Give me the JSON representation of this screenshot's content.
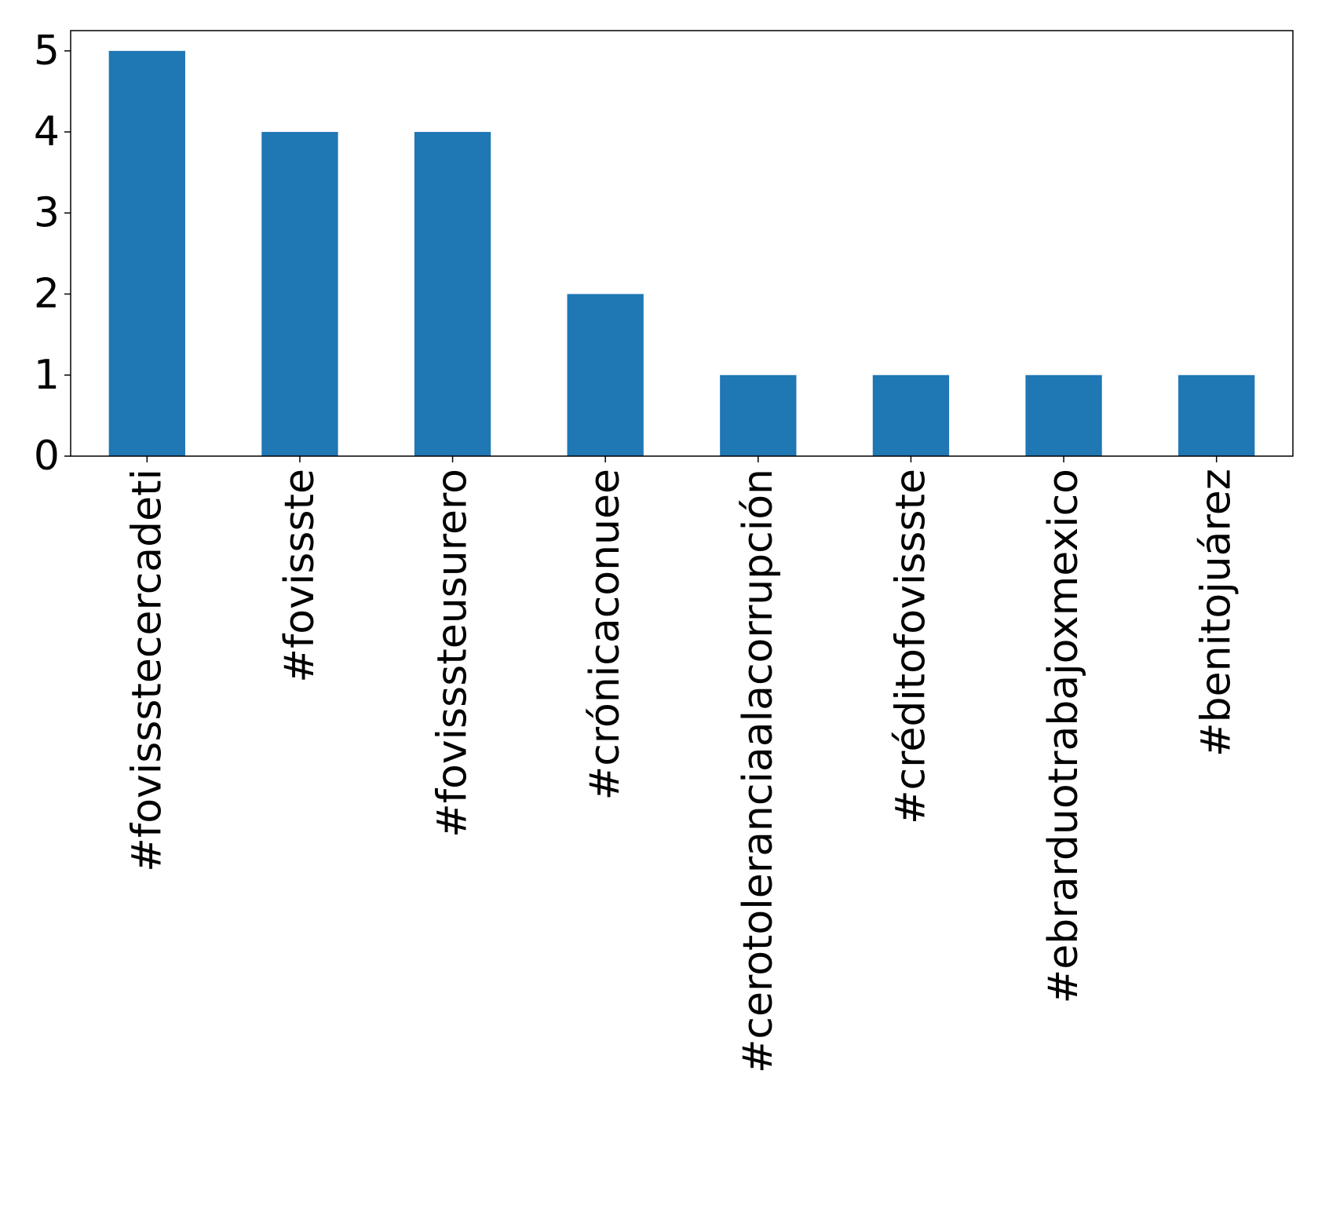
{
  "chart_data": {
    "type": "bar",
    "title": "",
    "xlabel": "",
    "ylabel": "",
    "categories": [
      "#fovissstecercadeti",
      "#fovissste",
      "#fovisssteusurero",
      "#crónicaconuee",
      "#cerotoleranciaalacorrupción",
      "#créditofovissste",
      "#ebrarduotrabajoxmexico",
      "#benitojuárez"
    ],
    "values": [
      5,
      4,
      4,
      2,
      1,
      1,
      1,
      1
    ],
    "ylim": [
      0,
      5.25
    ],
    "yticks": [
      0,
      1,
      2,
      3,
      4,
      5
    ],
    "grid": false,
    "legend": "none",
    "colors": {
      "bar": "#1f77b4",
      "axis": "#000000",
      "background": "#ffffff"
    }
  }
}
